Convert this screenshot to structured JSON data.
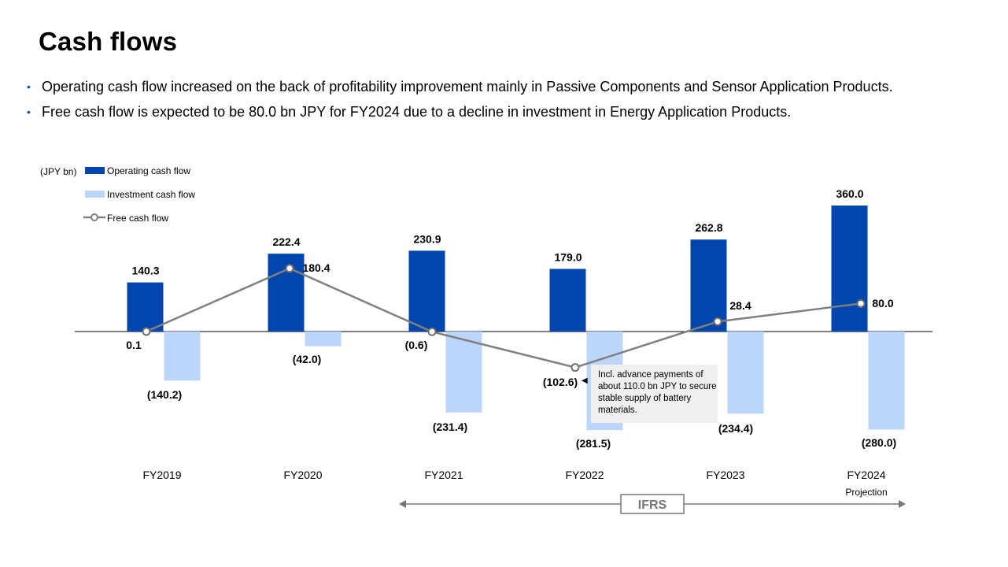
{
  "title": "Cash flows",
  "bullets": [
    "Operating cash flow increased on the back of profitability improvement mainly in Passive Components and Sensor Application Products.",
    "Free cash flow is expected to be 80.0 bn JPY for FY2024 due to a decline in investment in Energy Application Products."
  ],
  "chart_data": {
    "type": "bar",
    "unit_label": "(JPY bn)",
    "categories": [
      "FY2019",
      "FY2020",
      "FY2021",
      "FY2022",
      "FY2023",
      "FY2024"
    ],
    "category_sublabels": [
      "",
      "",
      "",
      "",
      "",
      "Projection"
    ],
    "series": [
      {
        "name": "Operating cash flow",
        "kind": "bar",
        "color": "#0046ad",
        "values": [
          140.3,
          222.4,
          230.9,
          179.0,
          262.8,
          360.0
        ],
        "labels": [
          "140.3",
          "222.4",
          "230.9",
          "179.0",
          "262.8",
          "360.0"
        ]
      },
      {
        "name": "Investment cash flow",
        "kind": "bar",
        "color": "#bcd6fb",
        "values": [
          -140.2,
          -42.0,
          -231.4,
          -281.5,
          -234.4,
          -280.0
        ],
        "labels": [
          "(140.2)",
          "(42.0)",
          "(231.4)",
          "(281.5)",
          "(234.4)",
          "(280.0)"
        ]
      },
      {
        "name": "Free cash flow",
        "kind": "line",
        "color": "#808080",
        "values": [
          0.1,
          180.4,
          -0.6,
          -102.6,
          28.4,
          80.0
        ],
        "labels": [
          "0.1",
          "180.4",
          "(0.6)",
          "(102.6)",
          "28.4",
          "80.0"
        ]
      }
    ],
    "ylim": [
      -330,
      380
    ],
    "annotation": "Incl. advance payments of about 110.0 bn JPY to secure stable supply of battery materials.",
    "bracket_label": "IFRS"
  }
}
